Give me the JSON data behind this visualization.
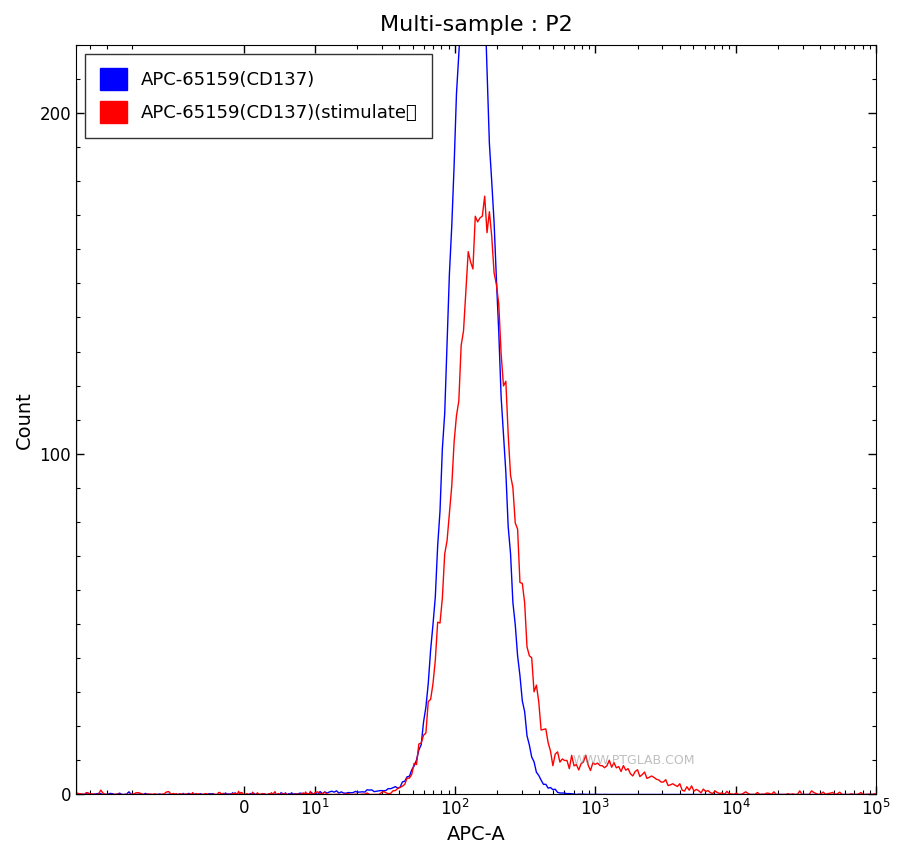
{
  "title": "Multi-sample : P2",
  "xlabel": "APC-A",
  "ylabel": "Count",
  "ylim": [
    0,
    220
  ],
  "yticks": [
    0,
    100,
    200
  ],
  "legend_blue": "APC-65159(CD137)",
  "legend_red": "APC-65159(CD137)(stimulate）",
  "blue_color": "#0000FF",
  "red_color": "#FF0000",
  "watermark": "WWW.PTGLAB.COM",
  "linthresh": 10,
  "xmin": -50,
  "xmax": 100000,
  "figsize": [
    9.06,
    8.59
  ],
  "dpi": 100,
  "seed": 12345
}
